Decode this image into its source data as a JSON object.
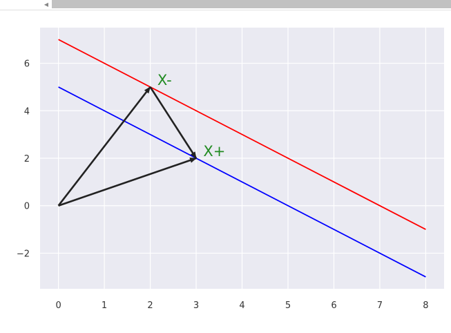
{
  "chart_data": {
    "type": "line",
    "title": "",
    "xlabel": "",
    "ylabel": "",
    "xlim": [
      -0.4,
      8.4
    ],
    "ylim": [
      -3.5,
      7.5
    ],
    "xticks": [
      0,
      1,
      2,
      3,
      4,
      5,
      6,
      7,
      8
    ],
    "yticks": [
      6,
      4,
      2,
      0,
      -2
    ],
    "ytick_labels": [
      "6",
      "4",
      "2",
      "0",
      "−2"
    ],
    "grid": true,
    "background": "#eaeaf2",
    "series": [
      {
        "color": "#ff0000",
        "x": [
          0,
          8
        ],
        "y": [
          7,
          -1
        ]
      },
      {
        "color": "#0000ff",
        "x": [
          0,
          8
        ],
        "y": [
          5,
          -3
        ]
      }
    ],
    "arrows": [
      {
        "from": [
          0,
          0
        ],
        "to": [
          2,
          5
        ],
        "color": "#222222"
      },
      {
        "from": [
          0,
          0
        ],
        "to": [
          3,
          2
        ],
        "color": "#222222"
      },
      {
        "from": [
          2,
          5
        ],
        "to": [
          3,
          2
        ],
        "color": "#222222"
      }
    ],
    "annotations": [
      {
        "text": "X-",
        "x": 2.2,
        "y": 5.2,
        "color": "#228b22"
      },
      {
        "text": "X+",
        "x": 3.2,
        "y": 2.2,
        "color": "#228b22"
      }
    ]
  }
}
